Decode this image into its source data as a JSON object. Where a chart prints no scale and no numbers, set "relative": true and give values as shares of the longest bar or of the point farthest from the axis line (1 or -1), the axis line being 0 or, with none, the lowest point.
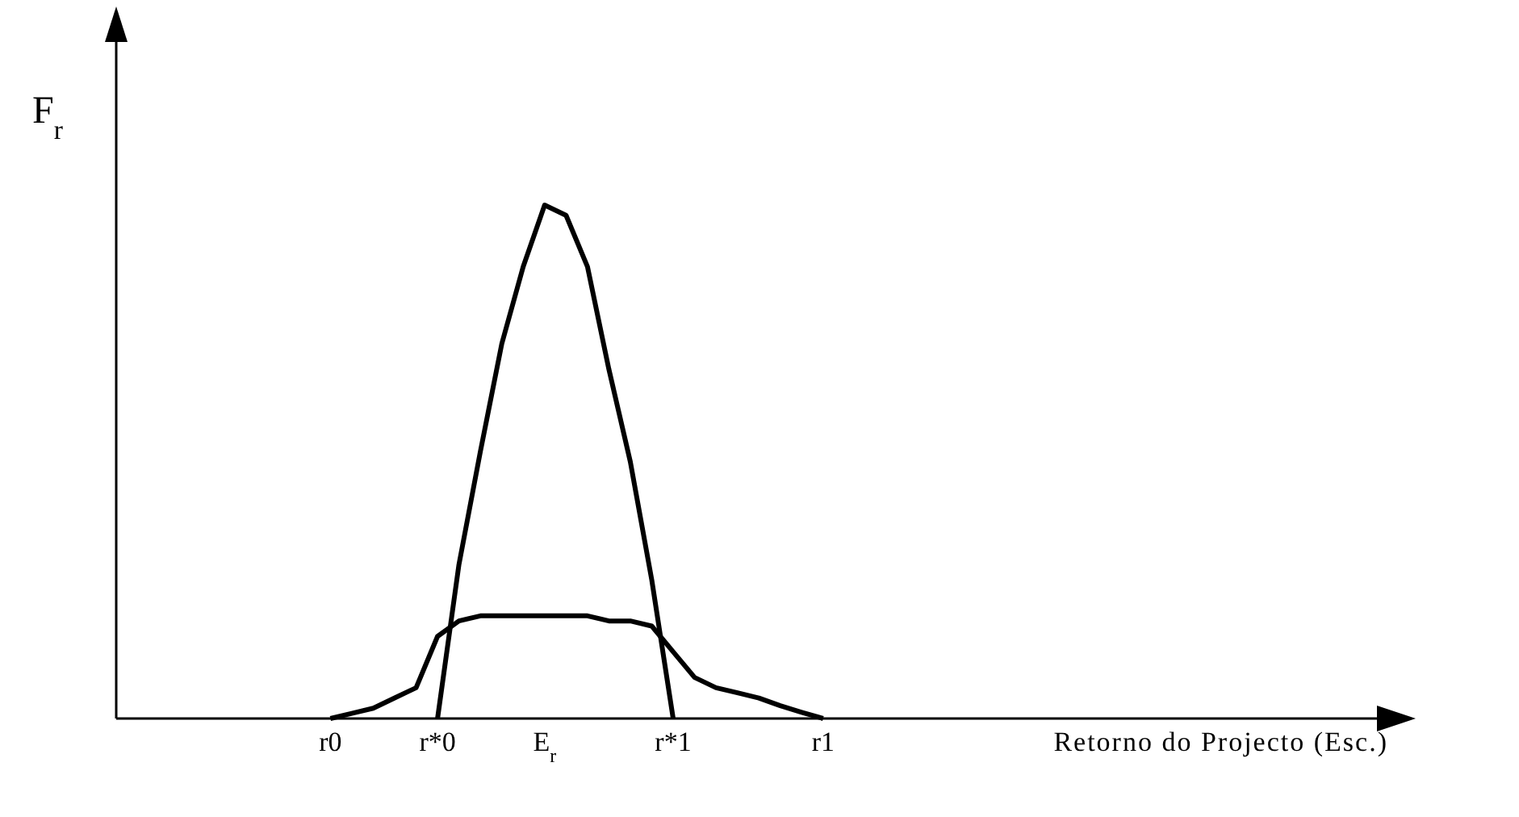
{
  "chart_data": {
    "type": "line",
    "relative": true,
    "xlabel": "Retorno do Projecto (Esc.)",
    "ylabel": "F$_{r}$",
    "categories": [
      null,
      null,
      null,
      null,
      null,
      null,
      null,
      null,
      null,
      null,
      "r0",
      null,
      null,
      null,
      null,
      "r*0",
      null,
      null,
      null,
      null,
      "E$_{r}$",
      null,
      null,
      null,
      null,
      null,
      "r*1",
      null,
      null,
      null,
      null,
      null,
      null,
      "r1",
      null,
      null,
      null,
      null,
      null,
      null,
      null,
      null,
      null,
      null,
      null,
      null,
      null,
      null,
      null,
      null,
      null,
      null,
      null,
      null,
      null,
      null,
      null,
      null,
      null,
      null
    ],
    "grid": false,
    "marker": "none",
    "line_style": "solid",
    "series": [
      {
        "color": "#000000",
        "values": [
          null,
          null,
          null,
          null,
          null,
          null,
          null,
          null,
          null,
          null,
          null,
          null,
          null,
          null,
          null,
          0,
          0.3,
          0.52,
          0.73,
          0.88,
          1,
          0.98,
          0.88,
          0.68,
          0.5,
          0.27,
          0,
          null,
          null,
          null,
          null,
          null,
          null,
          null,
          null,
          null,
          null,
          null,
          null,
          null,
          null,
          null,
          null,
          null,
          null,
          null,
          null,
          null,
          null,
          null,
          null,
          null,
          null,
          null,
          null,
          null,
          null,
          null,
          null,
          null
        ]
      },
      {
        "color": "#000000",
        "values": [
          null,
          null,
          null,
          null,
          null,
          null,
          null,
          null,
          null,
          null,
          0,
          0.01,
          0.02,
          0.04,
          0.06,
          0.16,
          0.19,
          0.2,
          0.2,
          0.2,
          0.2,
          0.2,
          0.2,
          0.19,
          0.19,
          0.18,
          0.13,
          0.08,
          0.06,
          0.05,
          0.04,
          0.025,
          0.012,
          0,
          null,
          null,
          null,
          null,
          null,
          null,
          null,
          null,
          null,
          null,
          null,
          null,
          null,
          null,
          null,
          null,
          null,
          null,
          null,
          null,
          null,
          null,
          null,
          null,
          null,
          null
        ]
      }
    ]
  }
}
